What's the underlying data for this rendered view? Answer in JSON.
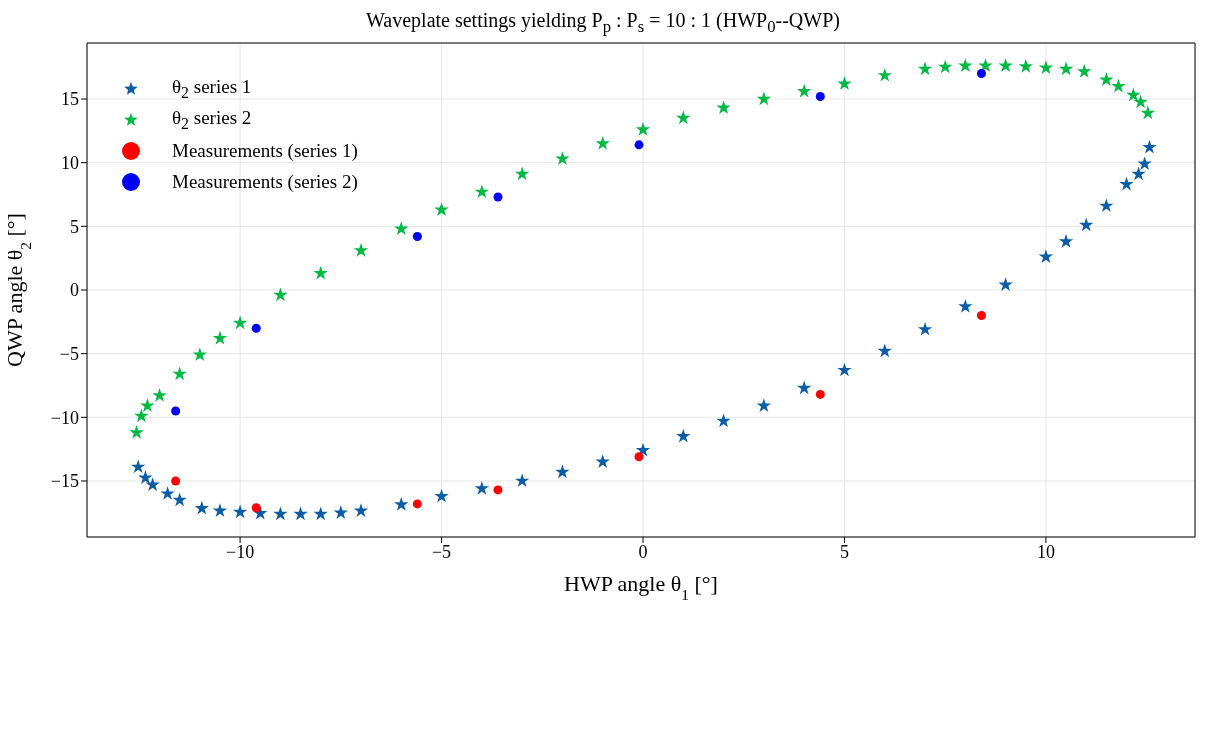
{
  "chart_data": {
    "type": "scatter",
    "title": "Waveplate settings yielding P$_{p}$ : P$_{s}$ = 10 : 1 (HWP$_{0}$--QWP)",
    "xlabel": "HWP angle θ$_{1}$ [°]",
    "ylabel": "QWP angle θ$_{2}$ [°]",
    "xlim": [
      -13.8,
      13.7
    ],
    "xticks": [
      -10,
      -5,
      0,
      5,
      10
    ],
    "ylim": [
      -19.4,
      19.4
    ],
    "yticks": [
      -15,
      -10,
      -5,
      0,
      5,
      10,
      15
    ],
    "grid": true,
    "legend": "top left",
    "series": [
      {
        "name": "θ$_{2}$ series 1",
        "color": "#0c5da5",
        "marker": "star",
        "x": [
          -12.53,
          -12.35,
          -12.17,
          -11.8,
          -11.5,
          -10.95,
          -10.5,
          -10,
          -9.5,
          -9,
          -8.5,
          -8,
          -7.5,
          -7,
          -6,
          -5,
          -4,
          -3,
          -2,
          -1,
          0,
          1,
          2,
          3,
          4,
          5,
          6,
          7,
          8,
          9,
          10,
          10.5,
          11,
          11.5,
          12,
          12.3,
          12.45,
          12.57
        ],
        "values": [
          -13.9,
          -14.75,
          -15.3,
          -16.0,
          -16.5,
          -17.15,
          -17.35,
          -17.45,
          -17.55,
          -17.6,
          -17.6,
          -17.6,
          -17.5,
          -17.35,
          -16.85,
          -16.2,
          -15.6,
          -15.0,
          -14.3,
          -13.5,
          -12.6,
          -11.5,
          -10.3,
          -9.1,
          -7.7,
          -6.3,
          -4.8,
          -3.1,
          -1.3,
          0.4,
          2.6,
          3.8,
          5.1,
          6.6,
          8.3,
          9.1,
          9.9,
          11.2
        ]
      },
      {
        "name": "θ$_{2}$ series 2",
        "color": "#00b945",
        "marker": "star",
        "x": [
          -12.57,
          -12.45,
          -12.3,
          -12,
          -11.5,
          -11,
          -10.5,
          -10,
          -9,
          -8,
          -7,
          -6,
          -5,
          -4,
          -3,
          -2,
          -1,
          0,
          1,
          2,
          3,
          4,
          5,
          6,
          7,
          7.5,
          8,
          8.5,
          9,
          9.5,
          10,
          10.5,
          10.95,
          11.5,
          11.8,
          12.17,
          12.35,
          12.53
        ],
        "values": [
          -11.2,
          -9.9,
          -9.1,
          -8.3,
          -6.6,
          -5.1,
          -3.8,
          -2.6,
          -0.4,
          1.3,
          3.1,
          4.8,
          6.3,
          7.7,
          9.1,
          10.3,
          11.5,
          12.6,
          13.5,
          14.3,
          15.0,
          15.6,
          16.2,
          16.85,
          17.35,
          17.5,
          17.6,
          17.6,
          17.6,
          17.55,
          17.45,
          17.35,
          17.15,
          16.5,
          16.0,
          15.3,
          14.75,
          13.9
        ]
      },
      {
        "name": "Measurements (series 1)",
        "color": "#ff0000",
        "marker": "circle",
        "x": [
          -11.6,
          -9.6,
          -5.6,
          -3.6,
          -0.1,
          4.4,
          8.4
        ],
        "values": [
          -15.0,
          -17.1,
          -16.8,
          -15.7,
          -13.1,
          -8.2,
          -2.0
        ]
      },
      {
        "name": "Measurements (series 2)",
        "color": "#0000ff",
        "marker": "circle",
        "x": [
          -11.6,
          -9.6,
          -5.6,
          -3.6,
          -0.1,
          4.4,
          8.4
        ],
        "values": [
          -9.5,
          -3.0,
          4.2,
          7.3,
          11.4,
          15.2,
          17.0
        ]
      }
    ]
  }
}
